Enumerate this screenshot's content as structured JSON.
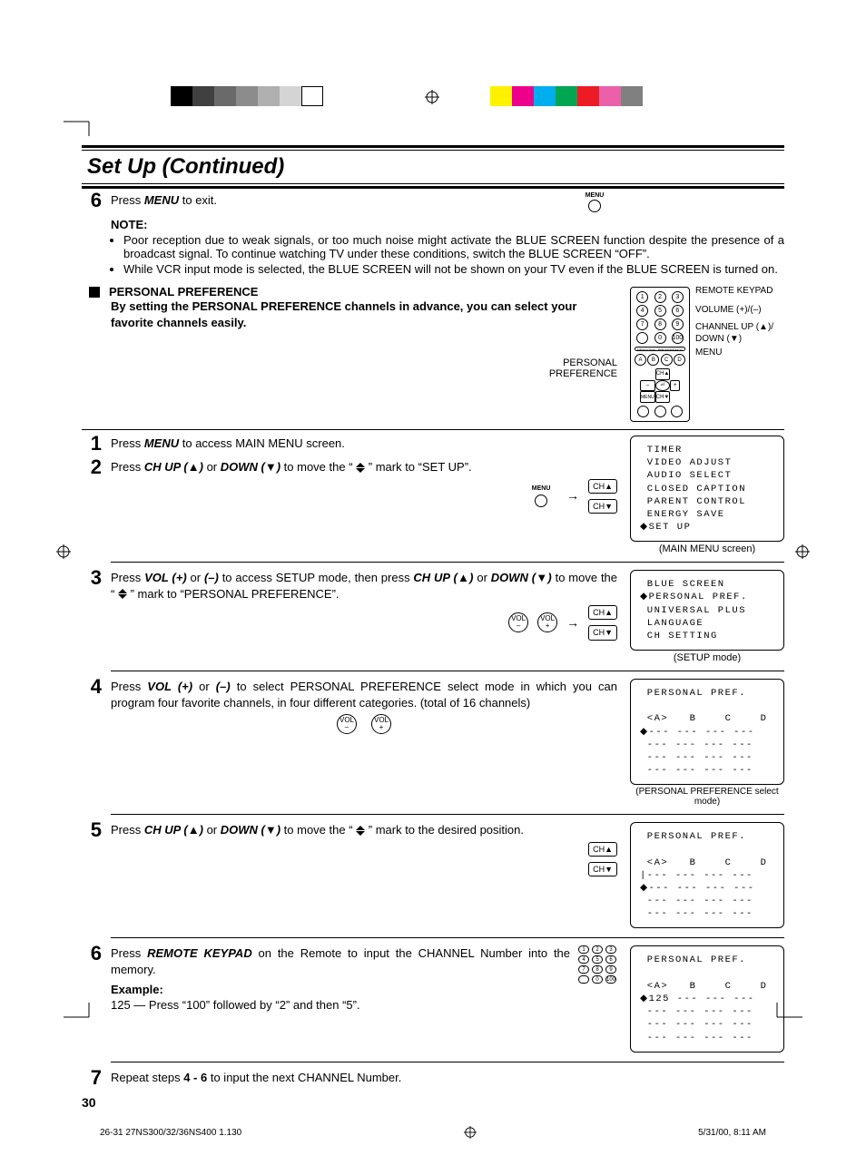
{
  "printer": {
    "left_swatches": [
      "#000000",
      "#404040",
      "#6a6a6a",
      "#8c8c8c",
      "#b0b0b0",
      "#d4d4d4",
      "#ffffff"
    ],
    "right_swatches": [
      "#fff200",
      "#ec008c",
      "#00aeef",
      "#00a651",
      "#ed1c24",
      "#ec60a9",
      "#808080"
    ]
  },
  "title": "Set Up (Continued)",
  "step6a": {
    "num": "6",
    "pre": "Press ",
    "key": "MENU",
    "post": " to exit."
  },
  "menu_label": "MENU",
  "note": {
    "head": "NOTE:",
    "items": [
      "Poor reception due to weak signals, or too much noise might activate the BLUE SCREEN function despite the presence of a broadcast signal. To continue watching TV under these conditions, switch the BLUE SCREEN “OFF”.",
      "While VCR input mode is selected, the BLUE SCREEN will not be shown on your TV even if the BLUE SCREEN is turned on."
    ]
  },
  "section": {
    "head": "PERSONAL PREFERENCE",
    "sub": "By setting the PERSONAL PREFERENCE channels in advance, you can select your favorite channels easily."
  },
  "remote_label": "PERSONAL\nPREFERENCE",
  "remote_legend": {
    "l1": "REMOTE KEYPAD",
    "l2": "VOLUME (+)/(–)",
    "l3": "CHANNEL UP (▲)/ DOWN (▼)",
    "l4": "MENU"
  },
  "keypad_nums": [
    "1",
    "2",
    "3",
    "4",
    "5",
    "6",
    "7",
    "8",
    "9"
  ],
  "keypad_bottom": [
    "",
    "0",
    "100"
  ],
  "remote_mid": [
    "A",
    "B",
    "C",
    "D"
  ],
  "rocker": {
    "up": "CH▲",
    "down": "CH▼",
    "left": "–",
    "right": "+",
    "menu": "MENU",
    "center": "⏎"
  },
  "bottom_btns": [
    "",
    "",
    ""
  ],
  "step1": {
    "num": "1",
    "pre": "Press ",
    "key": "MENU",
    "post": " to access MAIN MENU screen."
  },
  "step2": {
    "num": "2",
    "t1": "Press ",
    "k1": "CH UP (▲)",
    "t2": " or ",
    "k2": "DOWN (▼)",
    "t3": " to move the “ ",
    "t4": " ” mark to “SET UP”."
  },
  "screen_main": {
    "lines": [
      "TIMER",
      "VIDEO ADJUST",
      "AUDIO SELECT",
      "CLOSED CAPTION",
      "PARENT CONTROL",
      "ENERGY SAVE"
    ],
    "sel": "SET UP",
    "caption": "(MAIN MENU screen)"
  },
  "ch_up": "CH▲",
  "ch_down": "CH▼",
  "vol_minus": "VOL\n–",
  "vol_plus": "VOL\n+",
  "step3": {
    "num": "3",
    "t1": "Press ",
    "k1": "VOL (+)",
    "t2": " or ",
    "k2": "(–)",
    "t3": " to access SETUP mode, then press ",
    "k3": "CH UP (▲)",
    "t4": " or ",
    "k4": "DOWN (▼)",
    "t5": " to move the “ ",
    "t6": " ” mark to “PERSONAL PREFERENCE”."
  },
  "screen_setup": {
    "pre": "BLUE SCREEN",
    "sel": "PERSONAL PREF.",
    "post": [
      "UNIVERSAL PLUS",
      "LANGUAGE",
      "CH SETTING"
    ],
    "caption": "(SETUP mode)"
  },
  "step4": {
    "num": "4",
    "t1": "Press ",
    "k1": "VOL (+)",
    "t2": " or ",
    "k2": "(–)",
    "t3": " to select PERSONAL PREFERENCE select mode in which you can program four favorite channels, in four different categories. (total of 16 channels)"
  },
  "screen_pref_blank": {
    "title": "PERSONAL PREF.",
    "cols": "<A>   B    C    D",
    "rows": [
      "--- --- --- ---",
      "--- --- --- ---",
      "--- --- --- ---",
      "--- --- --- ---"
    ],
    "caption": "(PERSONAL PREFERENCE select mode)"
  },
  "step5": {
    "num": "5",
    "t1": "Press ",
    "k1": "CH UP (▲)",
    "t2": " or ",
    "k2": "DOWN (▼)",
    "t3": " to move the “ ",
    "t4": " ” mark to the desired position."
  },
  "screen_pref_pos": {
    "title": "PERSONAL PREF.",
    "cols": "<A>   B    C    D",
    "row_a": "--- --- --- ---",
    "row_b": "--- --- --- ---",
    "rows": [
      "--- --- --- ---",
      "--- --- --- ---"
    ]
  },
  "step6": {
    "num": "6",
    "t1": "Press ",
    "k1": "REMOTE KEYPAD",
    "t2": " on the Remote to input the CHANNEL Number into the memory.",
    "ex_head": "Example:",
    "ex": "125 — Press “100” followed by “2” and then “5”."
  },
  "screen_pref_125": {
    "title": "PERSONAL PREF.",
    "cols": "<A>   B    C    D",
    "row_sel": "125 --- --- ---",
    "rows": [
      "--- --- --- ---",
      "--- --- --- ---",
      "--- --- --- ---"
    ]
  },
  "step7": {
    "num": "7",
    "t1": "Repeat steps ",
    "k1": "4 - 6",
    "t2": " to input the next CHANNEL Number."
  },
  "page_number": "30",
  "footer": {
    "left": "26-31 27NS300/32/36NS400 1.1",
    "mid": "30",
    "right": "5/31/00, 8:11 AM"
  }
}
